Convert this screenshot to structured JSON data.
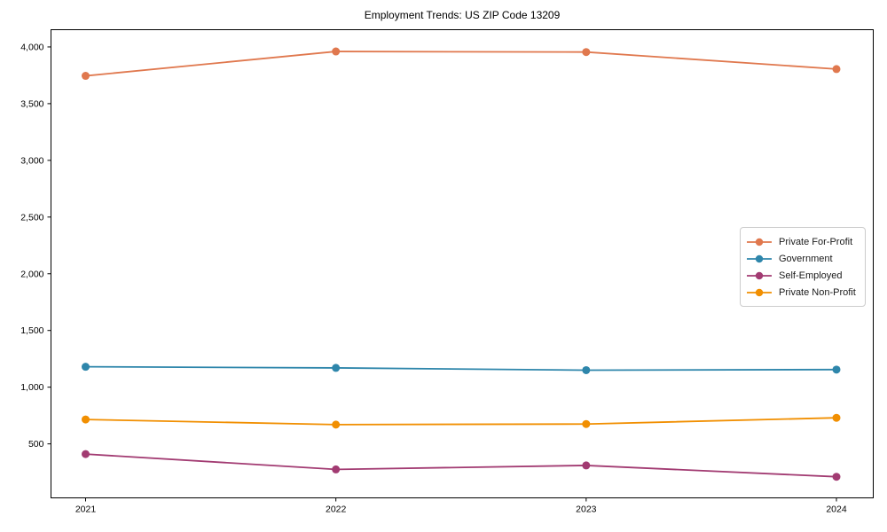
{
  "title": "Employment Trends: US ZIP Code 13209",
  "chart_data": {
    "type": "line",
    "title": "Employment Trends: US ZIP Code 13209",
    "xlabel": "",
    "ylabel": "",
    "categories": [
      "2021",
      "2022",
      "2023",
      "2024"
    ],
    "series": [
      {
        "name": "Private For-Profit",
        "color": "#E0784E",
        "values": [
          3745,
          3960,
          3955,
          3805
        ]
      },
      {
        "name": "Government",
        "color": "#2E86AB",
        "values": [
          1180,
          1170,
          1150,
          1155
        ]
      },
      {
        "name": "Self-Employed",
        "color": "#A23B72",
        "values": [
          410,
          275,
          310,
          210
        ]
      },
      {
        "name": "Private Non-Profit",
        "color": "#F18F01",
        "values": [
          715,
          670,
          675,
          730
        ]
      }
    ],
    "yticks": [
      500,
      1000,
      1500,
      2000,
      2500,
      3000,
      3500,
      4000
    ],
    "ytick_labels": [
      "500",
      "1,000",
      "1,500",
      "2,000",
      "2,500",
      "3,000",
      "3,500",
      "4,000"
    ],
    "ylim": [
      24,
      4152
    ],
    "grid": false,
    "marker": "circle",
    "legend_position": "center-right"
  }
}
